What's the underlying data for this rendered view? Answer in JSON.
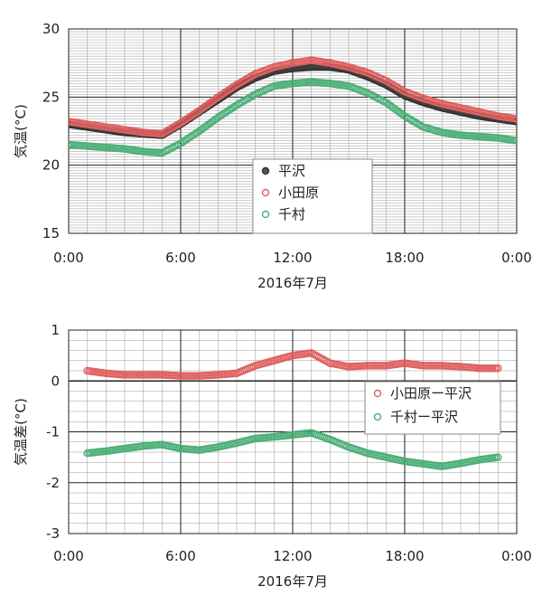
{
  "chart_data": [
    {
      "type": "scatter",
      "title": "",
      "xlabel": "2016年7月",
      "ylabel": "気温(°C)",
      "xlim": [
        0,
        24
      ],
      "ylim": [
        15,
        30
      ],
      "x_ticks": [
        "0:00",
        "6:00",
        "12:00",
        "18:00",
        "0:00"
      ],
      "y_ticks": [
        "15",
        "20",
        "25",
        "30"
      ],
      "grid": true,
      "legend_position": "center-right",
      "series": [
        {
          "name": "平沢",
          "color": "#333333",
          "points": [
            [
              0,
              23.0
            ],
            [
              1,
              22.8
            ],
            [
              2,
              22.6
            ],
            [
              3,
              22.4
            ],
            [
              4,
              22.3
            ],
            [
              5,
              22.2
            ],
            [
              6,
              23.0
            ],
            [
              7,
              23.9
            ],
            [
              8,
              24.8
            ],
            [
              9,
              25.7
            ],
            [
              10,
              26.4
            ],
            [
              11,
              26.9
            ],
            [
              12,
              27.1
            ],
            [
              13,
              27.2
            ],
            [
              14,
              27.2
            ],
            [
              15,
              27.0
            ],
            [
              16,
              26.5
            ],
            [
              17,
              25.9
            ],
            [
              18,
              25.1
            ],
            [
              19,
              24.6
            ],
            [
              20,
              24.2
            ],
            [
              21,
              23.9
            ],
            [
              22,
              23.6
            ],
            [
              23,
              23.4
            ],
            [
              24,
              23.2
            ]
          ]
        },
        {
          "name": "小田原",
          "color": "#e06060",
          "points": [
            [
              0,
              23.2
            ],
            [
              1,
              23.0
            ],
            [
              2,
              22.8
            ],
            [
              3,
              22.6
            ],
            [
              4,
              22.4
            ],
            [
              5,
              22.3
            ],
            [
              6,
              23.1
            ],
            [
              7,
              24.0
            ],
            [
              8,
              25.0
            ],
            [
              9,
              25.9
            ],
            [
              10,
              26.7
            ],
            [
              11,
              27.2
            ],
            [
              12,
              27.5
            ],
            [
              13,
              27.7
            ],
            [
              14,
              27.5
            ],
            [
              15,
              27.2
            ],
            [
              16,
              26.8
            ],
            [
              17,
              26.2
            ],
            [
              18,
              25.4
            ],
            [
              19,
              24.9
            ],
            [
              20,
              24.5
            ],
            [
              21,
              24.2
            ],
            [
              22,
              23.9
            ],
            [
              23,
              23.6
            ],
            [
              24,
              23.4
            ]
          ]
        },
        {
          "name": "千村",
          "color": "#4caf78",
          "points": [
            [
              0,
              21.5
            ],
            [
              1,
              21.4
            ],
            [
              2,
              21.3
            ],
            [
              3,
              21.2
            ],
            [
              4,
              21.0
            ],
            [
              5,
              20.9
            ],
            [
              6,
              21.6
            ],
            [
              7,
              22.5
            ],
            [
              8,
              23.5
            ],
            [
              9,
              24.4
            ],
            [
              10,
              25.2
            ],
            [
              11,
              25.8
            ],
            [
              12,
              26.0
            ],
            [
              13,
              26.1
            ],
            [
              14,
              26.0
            ],
            [
              15,
              25.8
            ],
            [
              16,
              25.3
            ],
            [
              17,
              24.6
            ],
            [
              18,
              23.6
            ],
            [
              19,
              22.8
            ],
            [
              20,
              22.4
            ],
            [
              21,
              22.2
            ],
            [
              22,
              22.1
            ],
            [
              23,
              22.0
            ],
            [
              24,
              21.8
            ]
          ]
        }
      ]
    },
    {
      "type": "scatter",
      "title": "",
      "xlabel": "2016年7月",
      "ylabel": "気温差(°C)",
      "xlim": [
        0,
        24
      ],
      "ylim": [
        -3,
        1
      ],
      "x_ticks": [
        "0:00",
        "6:00",
        "12:00",
        "18:00",
        "0:00"
      ],
      "y_ticks": [
        "1",
        "0",
        "-1",
        "-2",
        "-3"
      ],
      "grid": true,
      "legend_position": "center-right",
      "series": [
        {
          "name": "小田原ー平沢",
          "color": "#e06060",
          "points": [
            [
              1,
              0.2
            ],
            [
              2,
              0.15
            ],
            [
              3,
              0.12
            ],
            [
              4,
              0.12
            ],
            [
              5,
              0.12
            ],
            [
              6,
              0.1
            ],
            [
              7,
              0.1
            ],
            [
              8,
              0.12
            ],
            [
              9,
              0.15
            ],
            [
              10,
              0.3
            ],
            [
              11,
              0.4
            ],
            [
              12,
              0.5
            ],
            [
              13,
              0.55
            ],
            [
              14,
              0.35
            ],
            [
              15,
              0.28
            ],
            [
              16,
              0.3
            ],
            [
              17,
              0.3
            ],
            [
              18,
              0.35
            ],
            [
              19,
              0.3
            ],
            [
              20,
              0.3
            ],
            [
              21,
              0.28
            ],
            [
              22,
              0.25
            ],
            [
              23,
              0.25
            ]
          ]
        },
        {
          "name": "千村ー平沢",
          "color": "#4caf78",
          "points": [
            [
              1,
              -1.42
            ],
            [
              2,
              -1.38
            ],
            [
              3,
              -1.33
            ],
            [
              4,
              -1.28
            ],
            [
              5,
              -1.25
            ],
            [
              6,
              -1.33
            ],
            [
              7,
              -1.36
            ],
            [
              8,
              -1.3
            ],
            [
              9,
              -1.22
            ],
            [
              10,
              -1.13
            ],
            [
              11,
              -1.1
            ],
            [
              12,
              -1.06
            ],
            [
              13,
              -1.02
            ],
            [
              14,
              -1.15
            ],
            [
              15,
              -1.3
            ],
            [
              16,
              -1.42
            ],
            [
              17,
              -1.5
            ],
            [
              18,
              -1.58
            ],
            [
              19,
              -1.63
            ],
            [
              20,
              -1.68
            ],
            [
              21,
              -1.62
            ],
            [
              22,
              -1.55
            ],
            [
              23,
              -1.5
            ]
          ]
        }
      ]
    }
  ]
}
